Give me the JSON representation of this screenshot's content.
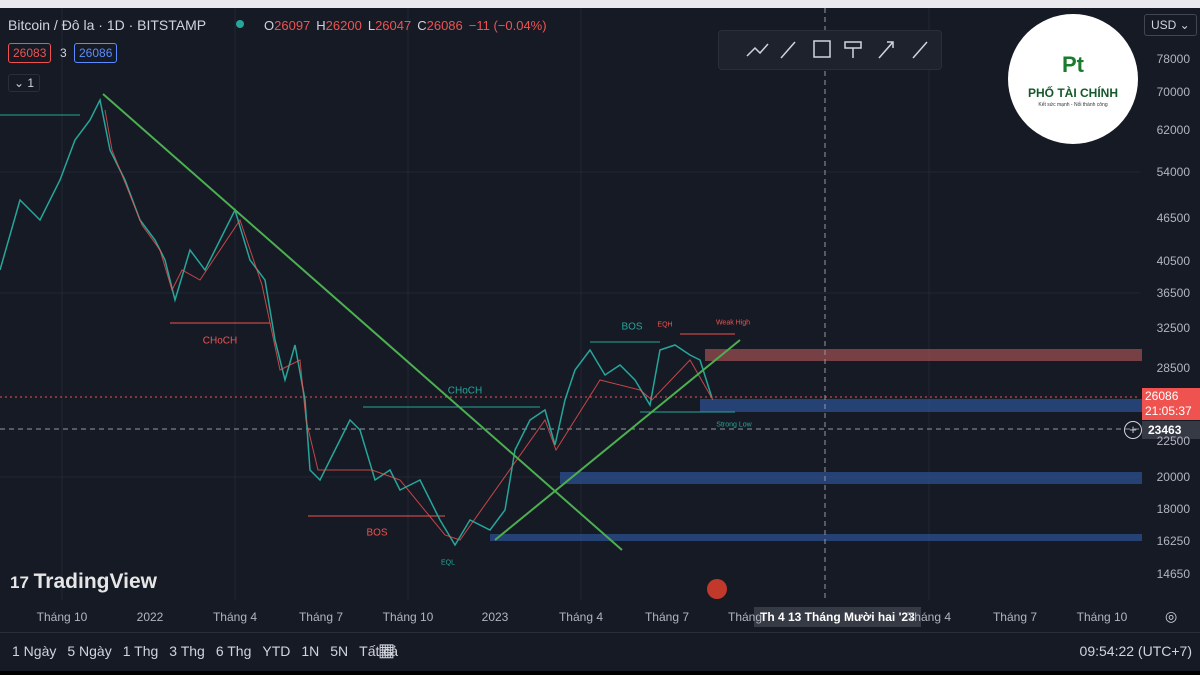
{
  "header": {
    "symbol": "Bitcoin / Đô la · 1D · BITSTAMP",
    "ohlc": [
      [
        "O",
        "26097"
      ],
      [
        "H",
        "26200"
      ],
      [
        "L",
        "26047"
      ],
      [
        "C",
        "26086"
      ]
    ],
    "change": "−11 (−0.04%)",
    "bid": "26083",
    "spread": "3",
    "ask": "26086",
    "indicators": "1"
  },
  "currency": "USD",
  "price_axis": [
    "78000",
    "70000",
    "62000",
    "54000",
    "46500",
    "40500",
    "36500",
    "32500",
    "28500",
    "22500",
    "20000",
    "18000",
    "16250",
    "14650"
  ],
  "last_price": {
    "price": "26086",
    "countdown": "21:05:37"
  },
  "crosshair": {
    "price": "23463",
    "date": "Th 4 13 Tháng Mười hai '23"
  },
  "time_axis": [
    "Tháng 10",
    "2022",
    "Tháng 4",
    "Tháng 7",
    "Tháng 10",
    "2023",
    "Tháng 4",
    "Tháng 7",
    "Tháng",
    "Tháng 4",
    "Tháng 7",
    "Tháng 10"
  ],
  "annotations": [
    "CHoCH",
    "CHoCH",
    "BOS",
    "BOS",
    "EQH",
    "Weak High",
    "Strong Low",
    "EQL"
  ],
  "watermark": "TradingView",
  "logo": {
    "name": "PHỐ TÀI CHÍNH",
    "slogan": "Kết sức mạnh - Nối thành công"
  },
  "ranges": [
    "1 Ngày",
    "5 Ngày",
    "1 Thg",
    "3 Thg",
    "6 Thg",
    "YTD",
    "1N",
    "5N",
    "Tất cả"
  ],
  "clock": "09:54:22 (UTC+7)"
}
